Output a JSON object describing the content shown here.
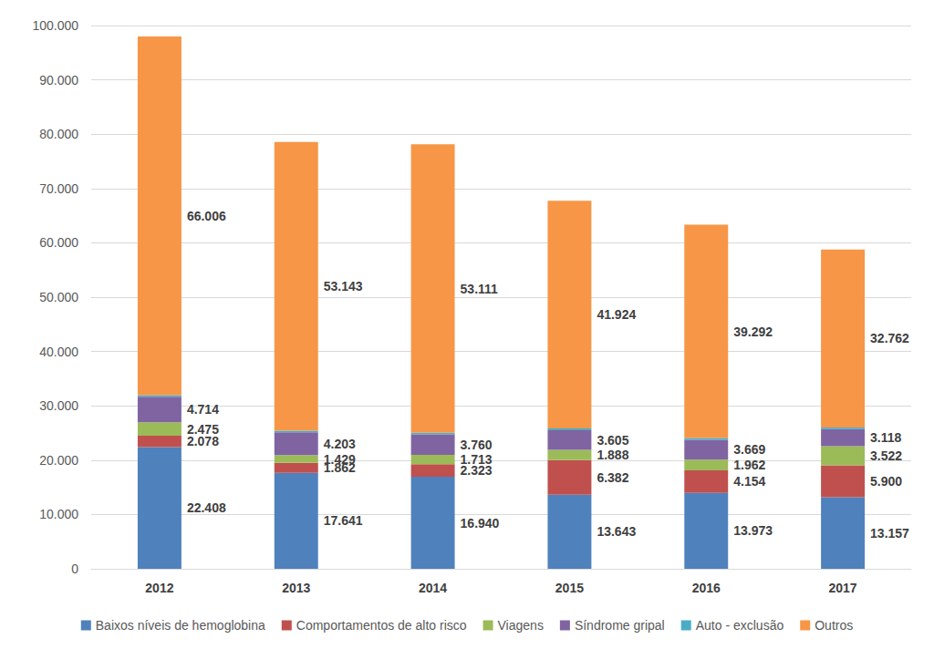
{
  "chart_data": {
    "type": "bar",
    "stacked": true,
    "grid": true,
    "legend": "bottom",
    "categories": [
      "2012",
      "2013",
      "2014",
      "2015",
      "2016",
      "2017"
    ],
    "ylim": [
      0,
      100000
    ],
    "yticks": [
      {
        "value": 0,
        "label": "0"
      },
      {
        "value": 10000,
        "label": "10.000"
      },
      {
        "value": 20000,
        "label": "20.000"
      },
      {
        "value": 30000,
        "label": "30.000"
      },
      {
        "value": 40000,
        "label": "40.000"
      },
      {
        "value": 50000,
        "label": "50.000"
      },
      {
        "value": 60000,
        "label": "60.000"
      },
      {
        "value": 70000,
        "label": "70.000"
      },
      {
        "value": 80000,
        "label": "80.000"
      },
      {
        "value": 90000,
        "label": "90.000"
      },
      {
        "value": 100000,
        "label": "100.000"
      }
    ],
    "series": [
      {
        "name": "Baixos níveis de hemoglobina",
        "color": "#4f81bd",
        "data_labels": true,
        "values": [
          22408,
          17641,
          16940,
          13643,
          13973,
          13157
        ],
        "value_labels": [
          "22.408",
          "17.641",
          "16.940",
          "13.643",
          "13.973",
          "13.157"
        ]
      },
      {
        "name": "Comportamentos de alto risco",
        "color": "#c0504d",
        "data_labels": true,
        "values": [
          2078,
          1862,
          2323,
          6382,
          4154,
          5900
        ],
        "value_labels": [
          "2.078",
          "1.862",
          "2.323",
          "6.382",
          "4.154",
          "5.900"
        ]
      },
      {
        "name": "Viagens",
        "color": "#9bbb59",
        "data_labels": true,
        "values": [
          2475,
          1429,
          1713,
          1888,
          1962,
          3522
        ],
        "value_labels": [
          "2.475",
          "1.429",
          "1.713",
          "1.888",
          "1.962",
          "3.522"
        ]
      },
      {
        "name": "Síndrome gripal",
        "color": "#8064a2",
        "data_labels": true,
        "values": [
          4714,
          4203,
          3760,
          3605,
          3669,
          3118
        ],
        "value_labels": [
          "4.714",
          "4.203",
          "3.760",
          "3.605",
          "3.669",
          "3.118"
        ]
      },
      {
        "name": "Auto - exclusão",
        "color": "#4bacc6",
        "data_labels": false,
        "values": [
          300,
          300,
          300,
          300,
          300,
          300
        ]
      },
      {
        "name": "Outros",
        "color": "#f79646",
        "data_labels": true,
        "values": [
          66006,
          53143,
          53111,
          41924,
          39292,
          32762
        ],
        "value_labels": [
          "66.006",
          "53.143",
          "53.111",
          "41.924",
          "39.292",
          "32.762"
        ]
      }
    ]
  }
}
